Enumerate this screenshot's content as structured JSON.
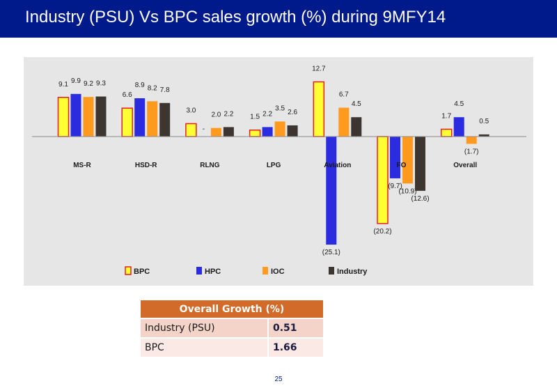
{
  "header": {
    "title": "Industry (PSU) Vs BPC sales growth (%) during 9MFY14"
  },
  "colors": {
    "header_bg": "#001a8c",
    "BPC": "#ffff33",
    "BPC_border": "#e81e1e",
    "HPC": "#2b2be0",
    "IOC": "#ff9a1e",
    "Industry": "#3d3530",
    "table_header": "#d26a29"
  },
  "chart_data": {
    "type": "bar",
    "categories": [
      "MS-R",
      "HSD-R",
      "RLNG",
      "LPG",
      "Aviation",
      "FO",
      "Overall"
    ],
    "series": [
      {
        "name": "BPC",
        "values": [
          9.1,
          6.6,
          3.0,
          1.5,
          12.7,
          -20.2,
          1.7
        ],
        "labels": [
          "9.1",
          "6.6",
          "3.0",
          "1.5",
          "12.7",
          "(20.2)",
          "1.7"
        ]
      },
      {
        "name": "HPC",
        "values": [
          9.9,
          8.9,
          0,
          2.2,
          -25.1,
          -9.7,
          4.5
        ],
        "labels": [
          "9.9",
          "8.9",
          "-",
          "2.2",
          "(25.1)",
          "(9.7)",
          "4.5"
        ]
      },
      {
        "name": "IOC",
        "values": [
          9.2,
          8.2,
          2.0,
          3.5,
          6.7,
          -10.9,
          -1.7
        ],
        "labels": [
          "9.2",
          "8.2",
          "2.0",
          "3.5",
          "6.7",
          "(10.9)",
          "(1.7)"
        ]
      },
      {
        "name": "Industry",
        "values": [
          9.3,
          7.8,
          2.2,
          2.6,
          4.5,
          -12.6,
          0.5
        ],
        "labels": [
          "9.3",
          "7.8",
          "2.2",
          "2.6",
          "4.5",
          "(12.6)",
          "0.5"
        ]
      }
    ],
    "ylim": [
      -26,
      14
    ],
    "grid": false,
    "legend_position": "bottom"
  },
  "table": {
    "header": "Overall Growth (%)",
    "rows": [
      {
        "label": "Industry (PSU)",
        "value": "0.51"
      },
      {
        "label": "BPC",
        "value": "1.66"
      }
    ]
  },
  "footer": {
    "page_number": "25"
  }
}
